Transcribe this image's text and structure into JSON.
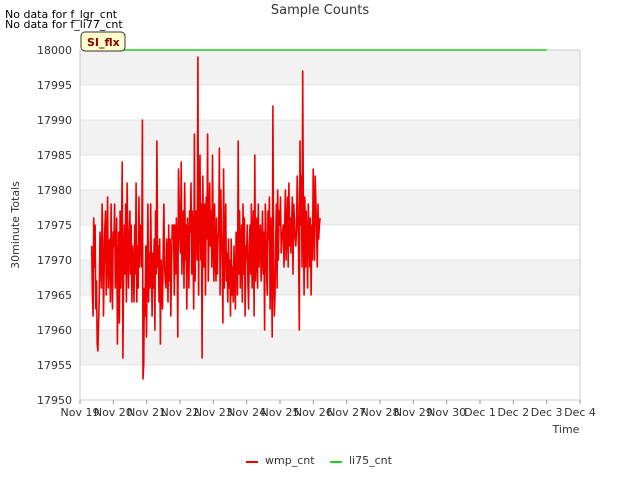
{
  "notes": {
    "no_data_1": "No data for f_lgr_cnt",
    "no_data_2": "No data for f_li77_cnt"
  },
  "badge": "SI_flx",
  "colors": {
    "wmp": "#ee0000",
    "li75": "#22cc22",
    "band": "#f2f2f2",
    "badge_bg": "#ffffcc"
  },
  "chart_data": {
    "type": "line",
    "title": "Sample Counts",
    "xlabel": "Time",
    "ylabel": "30minute Totals",
    "ylim": [
      17950,
      18000
    ],
    "yticks": [
      17950,
      17955,
      17960,
      17965,
      17970,
      17975,
      17980,
      17985,
      17990,
      17995,
      18000
    ],
    "xlim_days": [
      0,
      15
    ],
    "xticks": [
      "Nov 19",
      "Nov 20",
      "Nov 21",
      "Nov 22",
      "Nov 23",
      "Nov 24",
      "Nov 25",
      "Nov 26",
      "Nov 27",
      "Nov 28",
      "Nov 29",
      "Nov 30",
      "Dec 1",
      "Dec 2",
      "Dec 3",
      "Dec 4"
    ],
    "series": [
      {
        "name": "wmp_cnt",
        "x_start_day": 0.35,
        "x_step_day": 0.02083,
        "values": [
          17972,
          17965,
          17962,
          17976,
          17969,
          17975,
          17963,
          17967,
          17958,
          17957,
          17961,
          17965,
          17974,
          17971,
          17966,
          17978,
          17973,
          17962,
          17969,
          17975,
          17977,
          17965,
          17971,
          17979,
          17966,
          17970,
          17973,
          17964,
          17978,
          17969,
          17963,
          17974,
          17972,
          17978,
          17966,
          17971,
          17976,
          17958,
          17968,
          17974,
          17961,
          17977,
          17966,
          17972,
          17984,
          17956,
          17969,
          17975,
          17968,
          17978,
          17964,
          17981,
          17971,
          17966,
          17974,
          17977,
          17968,
          17975,
          17964,
          17972,
          17969,
          17964,
          17975,
          17968,
          17981,
          17964,
          17972,
          17966,
          17979,
          17969,
          17975,
          17973,
          17969,
          17990,
          17953,
          17955,
          17966,
          17962,
          17972,
          17959,
          17969,
          17978,
          17964,
          17971,
          17966,
          17978,
          17969,
          17962,
          17971,
          17966,
          17973,
          17960,
          17977,
          17968,
          17987,
          17969,
          17972,
          17964,
          17973,
          17958,
          17970,
          17967,
          17963,
          17972,
          17978,
          17969,
          17967,
          17966,
          17973,
          17971,
          17964,
          17975,
          17967,
          17973,
          17962,
          17969,
          17975,
          17973,
          17975,
          17965,
          17975,
          17968,
          17976,
          17971,
          17959,
          17983,
          17978,
          17973,
          17971,
          17984,
          17968,
          17975,
          17977,
          17966,
          17981,
          17970,
          17975,
          17963,
          17976,
          17973,
          17966,
          17977,
          17974,
          17981,
          17968,
          17977,
          17972,
          17963,
          17988,
          17967,
          17977,
          17975,
          17970,
          17999,
          17965,
          17980,
          17985,
          17970,
          17978,
          17956,
          17982,
          17973,
          17969,
          17978,
          17965,
          17979,
          17973,
          17988,
          17967,
          17975,
          17981,
          17972,
          17977,
          17969,
          17985,
          17973,
          17967,
          17978,
          17970,
          17967,
          17976,
          17968,
          17973,
          17974,
          17986,
          17965,
          17980,
          17974,
          17970,
          17961,
          17983,
          17966,
          17973,
          17978,
          17967,
          17971,
          17964,
          17973,
          17966,
          17970,
          17962,
          17973,
          17965,
          17969,
          17964,
          17972,
          17968,
          17963,
          17974,
          17970,
          17965,
          17987,
          17968,
          17977,
          17966,
          17972,
          17975,
          17964,
          17978,
          17968,
          17976,
          17962,
          17972,
          17970,
          17975,
          17967,
          17963,
          17972,
          17975,
          17968,
          17978,
          17966,
          17974,
          17977,
          17962,
          17985,
          17967,
          17970,
          17976,
          17966,
          17978,
          17969,
          17973,
          17975,
          17967,
          17971,
          17977,
          17968,
          17974,
          17960,
          17978,
          17975,
          17968,
          17965,
          17977,
          17973,
          17979,
          17963,
          17976,
          17970,
          17959,
          17992,
          17969,
          17962,
          17965,
          17973,
          17978,
          17966,
          17980,
          17970,
          17977,
          17975,
          17979,
          17971,
          17973,
          17974,
          17975,
          17969,
          17975,
          17980,
          17970,
          17974,
          17979,
          17969,
          17981,
          17972,
          17976,
          17971,
          17975,
          17979,
          17968,
          17978,
          17976,
          17973,
          17972,
          17974,
          17982,
          17978,
          17971,
          17960,
          17987,
          17975,
          17982,
          17969,
          17997,
          17976,
          17965,
          17979,
          17969,
          17977,
          17973,
          17966,
          17978,
          17974,
          17969,
          17976,
          17965,
          17975,
          17970,
          17983,
          17976,
          17970,
          17982,
          17978,
          17974,
          17969,
          17978,
          17973,
          17975,
          17976
        ]
      },
      {
        "name": "li75_cnt",
        "constant": 18000,
        "x_start_day": 0.35,
        "x_end_day": 14.0
      }
    ],
    "legend": [
      "wmp_cnt",
      "li75_cnt"
    ],
    "legend_position": "bottom-center",
    "grid": "horizontal bands"
  }
}
